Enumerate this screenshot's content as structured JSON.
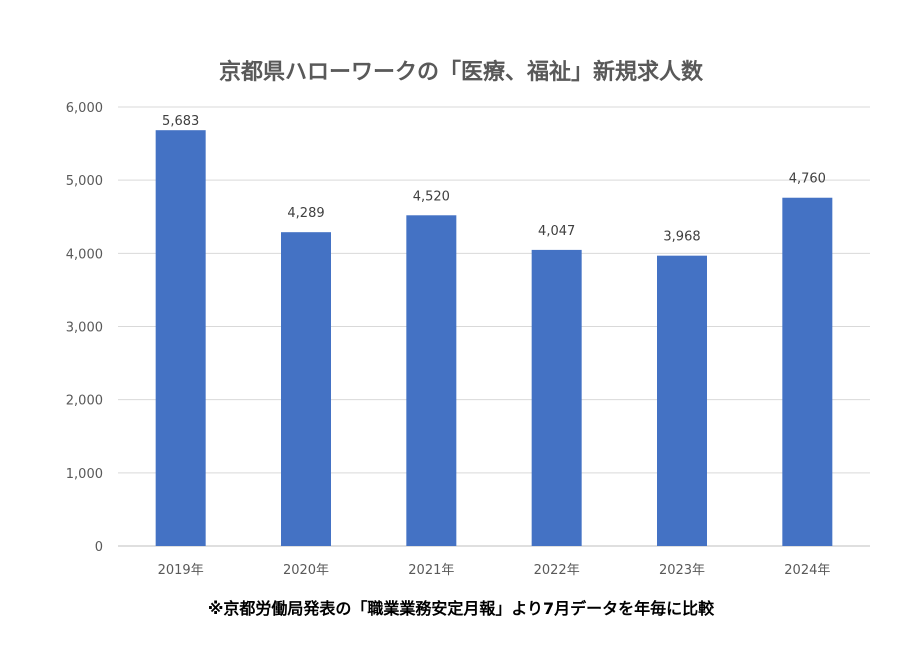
{
  "chart_data": {
    "type": "bar",
    "title": "京都県ハローワークの「医療、福祉」新規求人数",
    "categories": [
      "2019年",
      "2020年",
      "2021年",
      "2022年",
      "2023年",
      "2024年"
    ],
    "values": [
      5683,
      4289,
      4520,
      4047,
      3968,
      4760
    ],
    "value_labels": [
      "5,683",
      "4,289",
      "4,520",
      "4,047",
      "3,968",
      "4,760"
    ],
    "yticks": [
      "0",
      "1,000",
      "2,000",
      "3,000",
      "4,000",
      "5,000",
      "6,000"
    ],
    "ylim": [
      0,
      6000
    ],
    "xlabel": "",
    "ylabel": "",
    "grid": true,
    "bar_color": "#4472C4",
    "footnote": "※京都労働局発表の「職業業務安定月報」より7月データを年毎に比較"
  }
}
